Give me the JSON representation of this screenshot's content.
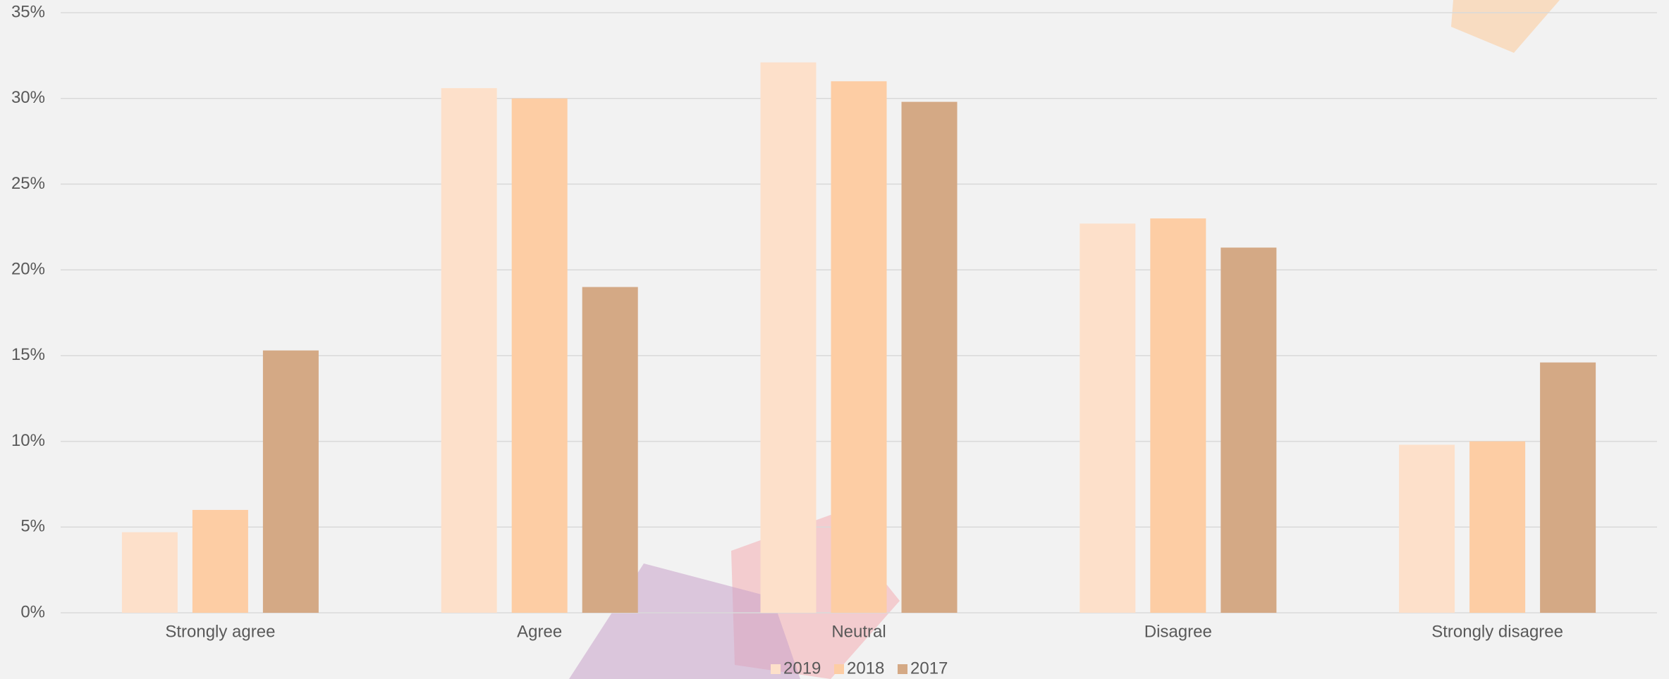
{
  "chart_data": {
    "type": "bar",
    "categories": [
      "Strongly agree",
      "Agree",
      "Neutral",
      "Disagree",
      "Strongly disagree"
    ],
    "series": [
      {
        "name": "2019",
        "color": "#fde0ca",
        "values": [
          4.7,
          30.6,
          32.1,
          22.7,
          9.8
        ]
      },
      {
        "name": "2018",
        "color": "#fdcda4",
        "values": [
          6.0,
          30.0,
          31.0,
          23.0,
          10.0
        ]
      },
      {
        "name": "2017",
        "color": "#d4a985",
        "values": [
          15.3,
          19.0,
          29.8,
          21.3,
          14.6
        ]
      }
    ],
    "ylim": [
      0,
      35
    ],
    "yticks": [
      {
        "value": 0,
        "label": "0%"
      },
      {
        "value": 5,
        "label": "5%"
      },
      {
        "value": 10,
        "label": "10%"
      },
      {
        "value": 15,
        "label": "15%"
      },
      {
        "value": 20,
        "label": "20%"
      },
      {
        "value": 25,
        "label": "25%"
      },
      {
        "value": 30,
        "label": "30%"
      },
      {
        "value": 35,
        "label": "35%"
      }
    ],
    "grid": true,
    "legend": "bottom"
  }
}
